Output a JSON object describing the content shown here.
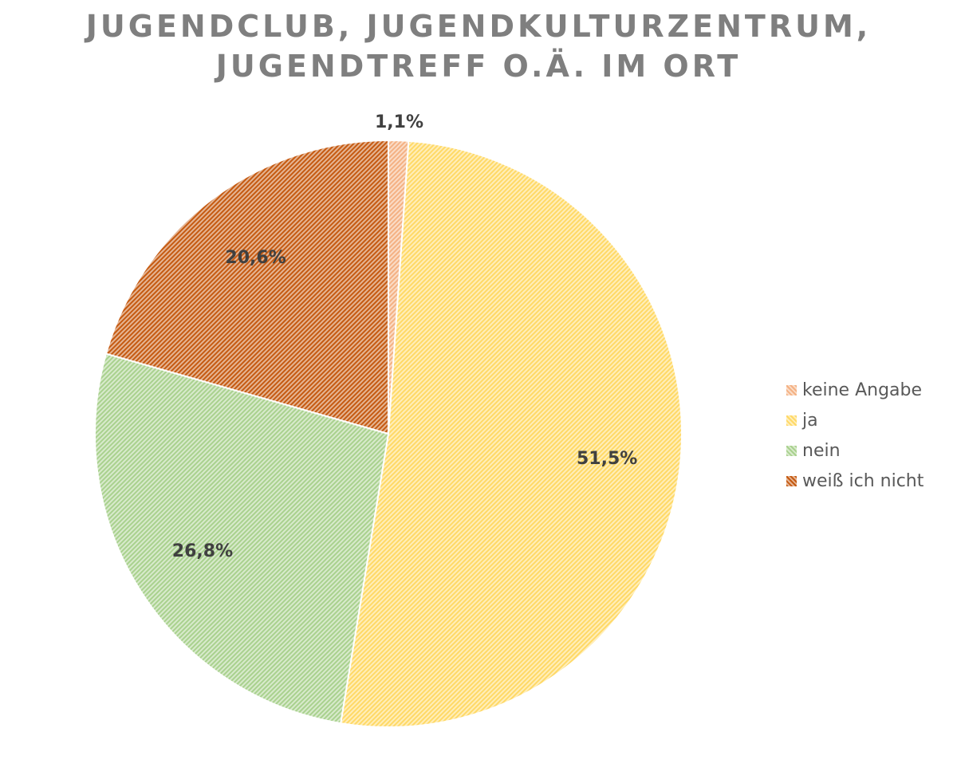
{
  "title": {
    "line1": "JUGENDCLUB, JUGENDKULTURZENTRUM,",
    "line2": "JUGENDTREFF O.Ä. IM ORT"
  },
  "chart_data": {
    "type": "pie",
    "title": "JUGENDCLUB, JUGENDKULTURZENTRUM, JUGENDTREFF O.Ä. IM ORT",
    "categories": [
      "keine Angabe",
      "ja",
      "nein",
      "weiß ich nicht"
    ],
    "values": [
      1.1,
      51.5,
      26.8,
      20.6
    ],
    "data_labels": [
      "1,1%",
      "51,5%",
      "26,8%",
      "20,6%"
    ],
    "colors": [
      "#f4b183",
      "#ffd966",
      "#a9d18e",
      "#c55a11"
    ],
    "fill_pattern": "diagonal-hatch",
    "legend_placement": "right"
  },
  "legend": {
    "items": [
      {
        "label": "keine Angabe"
      },
      {
        "label": "ja"
      },
      {
        "label": "nein"
      },
      {
        "label": "weiß ich nicht"
      }
    ]
  }
}
